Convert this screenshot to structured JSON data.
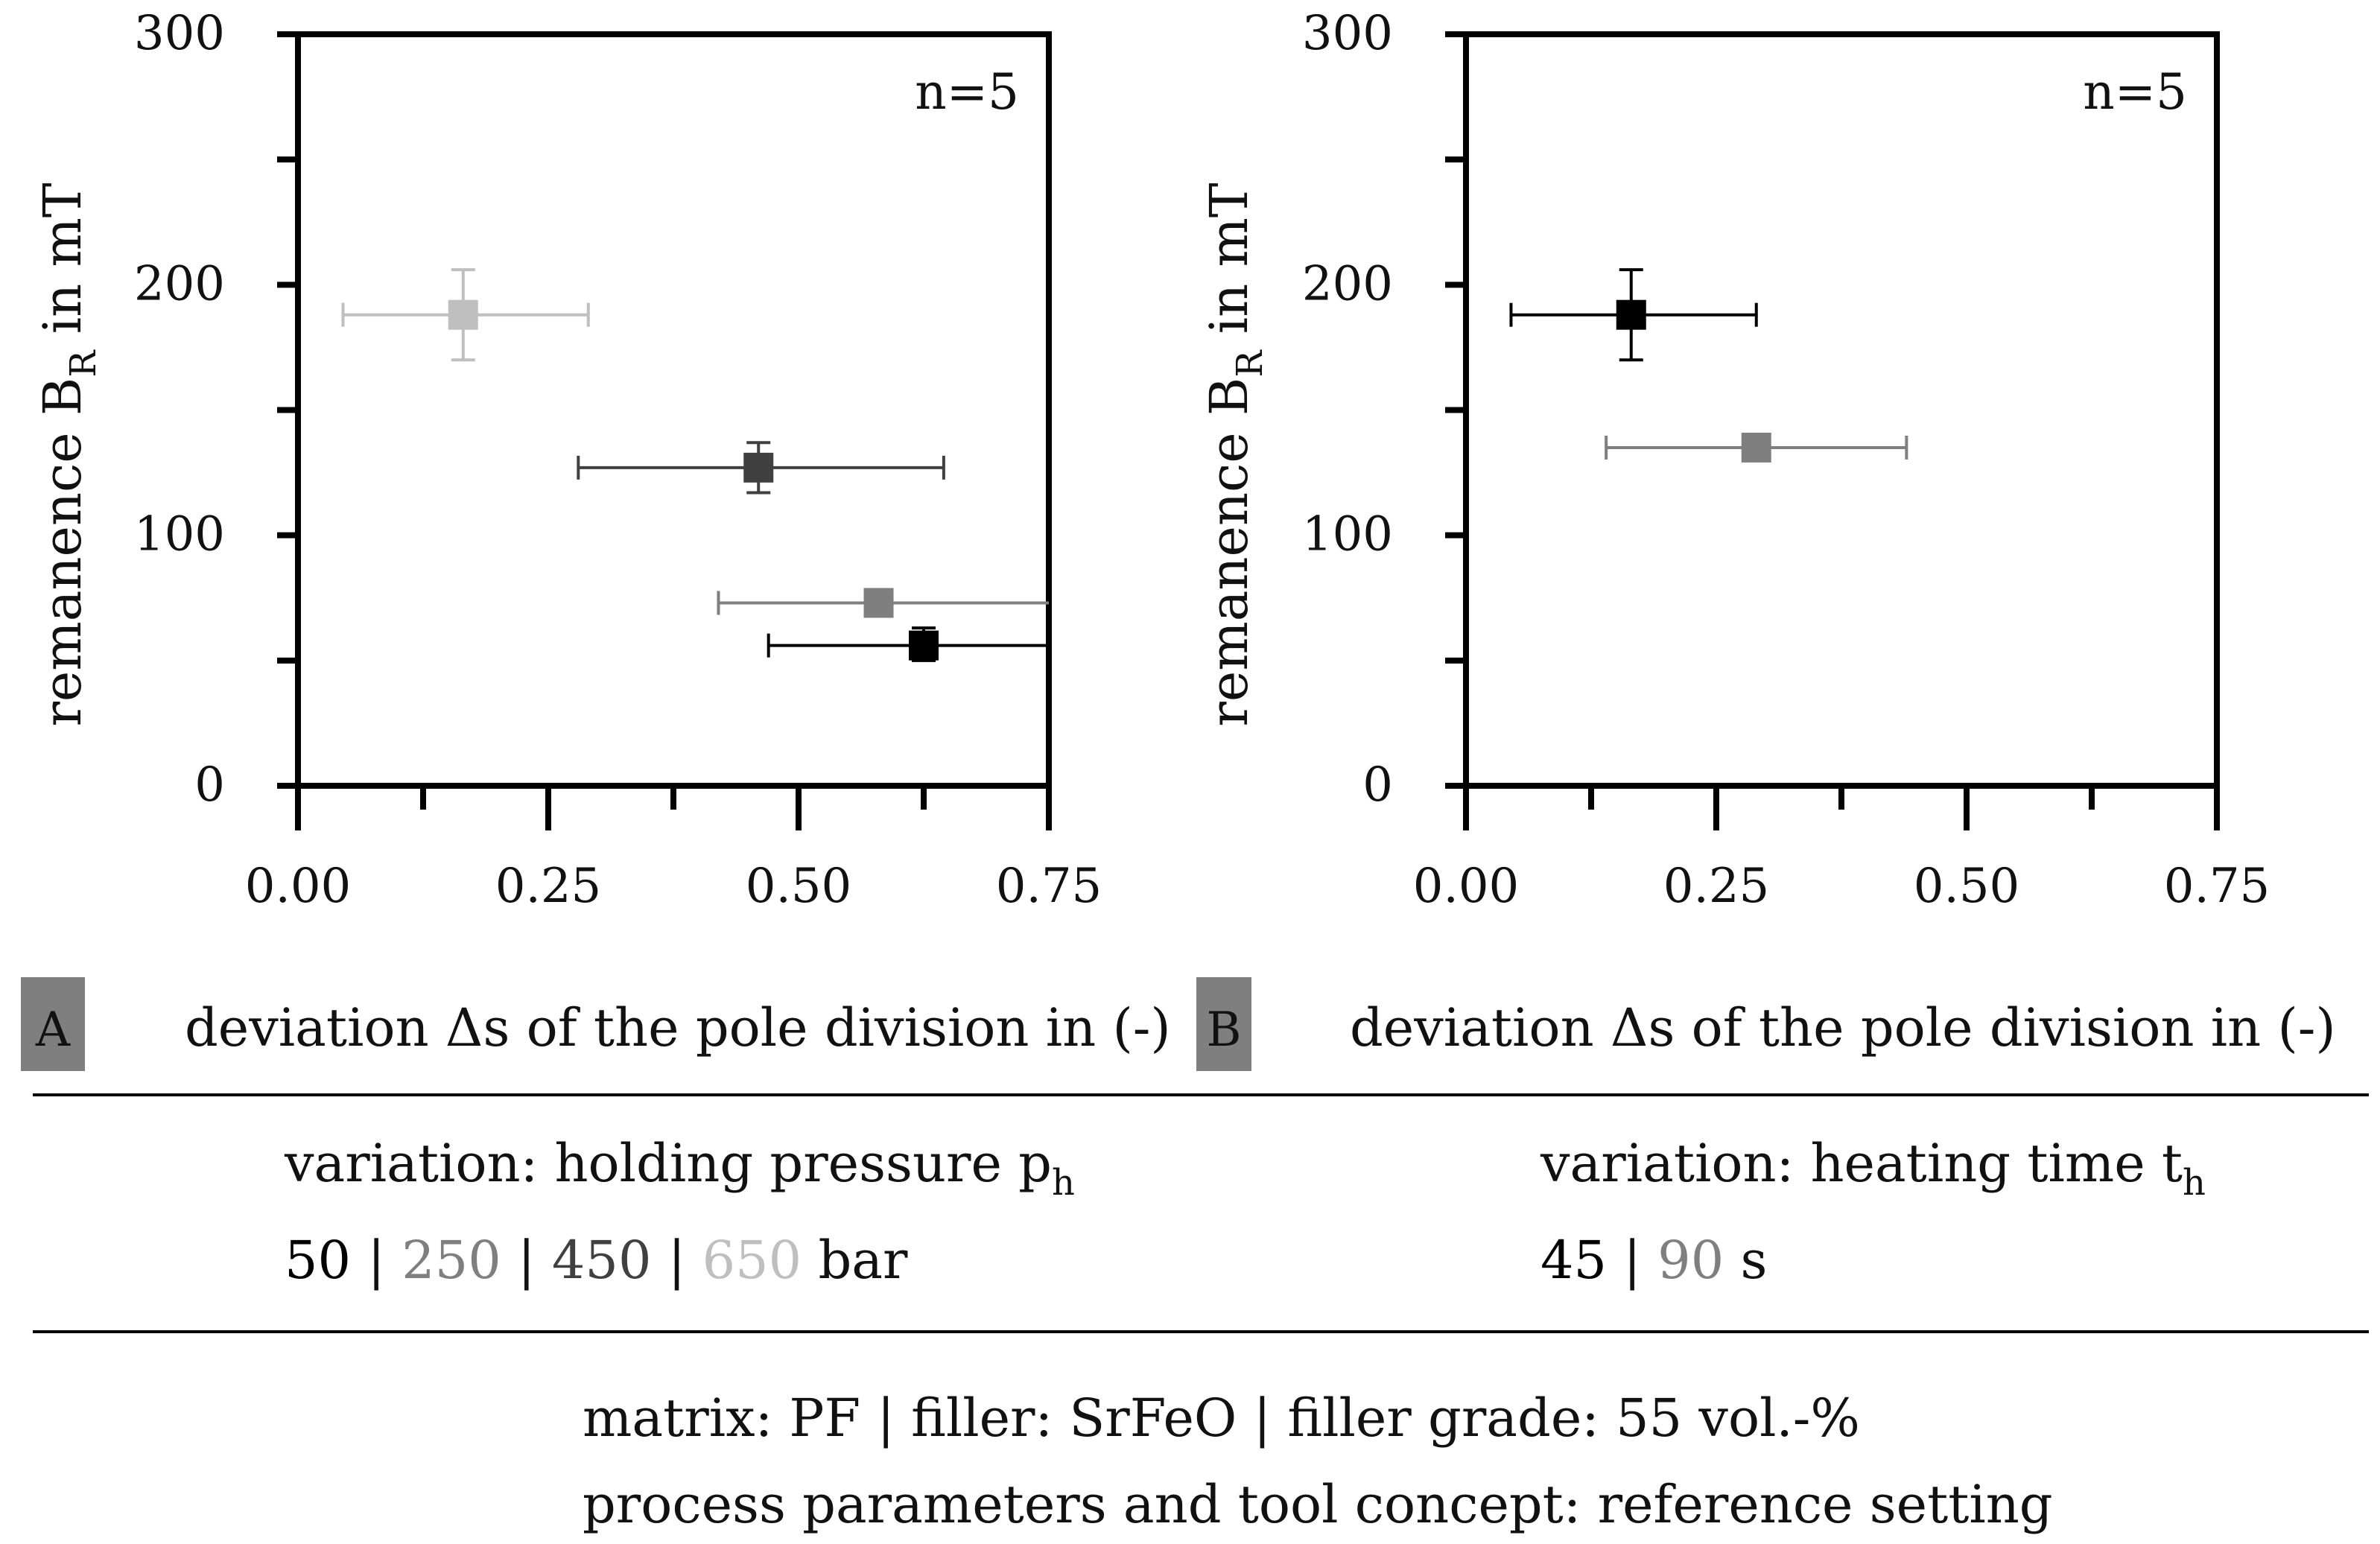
{
  "chart_data": [
    {
      "type": "scatter",
      "panel": "A",
      "xlabel": "deviation Δs of the pole division in (-)",
      "ylabel": "remanence B",
      "ylabel_sub": "R",
      "ylabel_suffix": " in mT",
      "xlim": [
        0,
        0.75
      ],
      "ylim": [
        0,
        300
      ],
      "xticks": [
        "0.00",
        "0.25",
        "0.50",
        "0.75"
      ],
      "yticks": [
        "0",
        "100",
        "200",
        "300"
      ],
      "annotation": "n=5",
      "series": [
        {
          "name": "50 bar",
          "color": "#000000",
          "x": 0.625,
          "y": 56,
          "xerr": [
            0.47,
            0.75
          ],
          "yerr": [
            50,
            63
          ]
        },
        {
          "name": "250 bar",
          "color": "#7f7f7f",
          "x": 0.58,
          "y": 73,
          "xerr": [
            0.42,
            0.75
          ],
          "yerr": [
            69,
            76
          ]
        },
        {
          "name": "450 bar",
          "color": "#404040",
          "x": 0.46,
          "y": 127,
          "xerr": [
            0.28,
            0.645
          ],
          "yerr": [
            117,
            137
          ]
        },
        {
          "name": "650 bar",
          "color": "#bfbfbf",
          "x": 0.165,
          "y": 188,
          "xerr": [
            0.045,
            0.29
          ],
          "yerr": [
            170,
            206
          ]
        }
      ]
    },
    {
      "type": "scatter",
      "panel": "B",
      "xlabel": "deviation Δs of the pole division in (-)",
      "ylabel": "remanence B",
      "ylabel_sub": "R",
      "ylabel_suffix": " in mT",
      "xlim": [
        0,
        0.75
      ],
      "ylim": [
        0,
        300
      ],
      "xticks": [
        "0.00",
        "0.25",
        "0.50",
        "0.75"
      ],
      "yticks": [
        "0",
        "100",
        "200",
        "300"
      ],
      "annotation": "n=5",
      "series": [
        {
          "name": "45 s",
          "color": "#000000",
          "x": 0.165,
          "y": 188,
          "xerr": [
            0.045,
            0.29
          ],
          "yerr": [
            170,
            206
          ]
        },
        {
          "name": "90 s",
          "color": "#7f7f7f",
          "x": 0.29,
          "y": 135,
          "xerr": [
            0.14,
            0.44
          ],
          "yerr": [
            135,
            135
          ]
        }
      ]
    }
  ],
  "badges": {
    "a": "A",
    "b": "B",
    "color": "#7f7f7f"
  },
  "legend_a": {
    "title": "variation: holding pressure p",
    "title_sub": "h",
    "values": [
      {
        "text": "50",
        "color": "#000000"
      },
      {
        "text": "250",
        "color": "#7f7f7f"
      },
      {
        "text": "450",
        "color": "#404040"
      },
      {
        "text": "650",
        "color": "#bfbfbf"
      }
    ],
    "separator": "|",
    "unit": "bar"
  },
  "legend_b": {
    "title": "variation: heating time t",
    "title_sub": "h",
    "values": [
      {
        "text": "45",
        "color": "#000000"
      },
      {
        "text": "90",
        "color": "#7f7f7f"
      }
    ],
    "separator": "|",
    "unit": "s"
  },
  "footer": {
    "line1": "matrix: PF | filler: SrFeO | filler grade: 55 vol.-%",
    "line2": "process parameters and tool concept: reference setting"
  }
}
